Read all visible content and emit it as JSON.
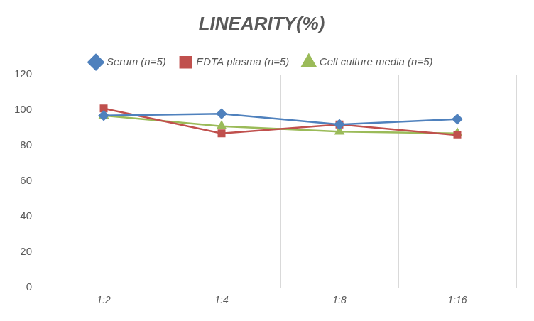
{
  "chart_data": {
    "type": "line",
    "title": "LINEARITY(%)",
    "categories": [
      "1:2",
      "1:4",
      "1:8",
      "1:16"
    ],
    "series": [
      {
        "name": "Serum (n=5)",
        "color": "#4f81bd",
        "marker": "diamond",
        "values": [
          97,
          98,
          92,
          95
        ]
      },
      {
        "name": "EDTA plasma (n=5)",
        "color": "#c0504d",
        "marker": "square",
        "values": [
          101,
          87,
          92,
          86
        ]
      },
      {
        "name": "Cell culture media (n=5)",
        "color": "#9bbb59",
        "marker": "triangle",
        "values": [
          97,
          91,
          88,
          87
        ]
      }
    ],
    "ylim": [
      0,
      120
    ],
    "yticks": [
      0,
      20,
      40,
      60,
      80,
      100,
      120
    ],
    "grid": true,
    "legend": "top"
  }
}
